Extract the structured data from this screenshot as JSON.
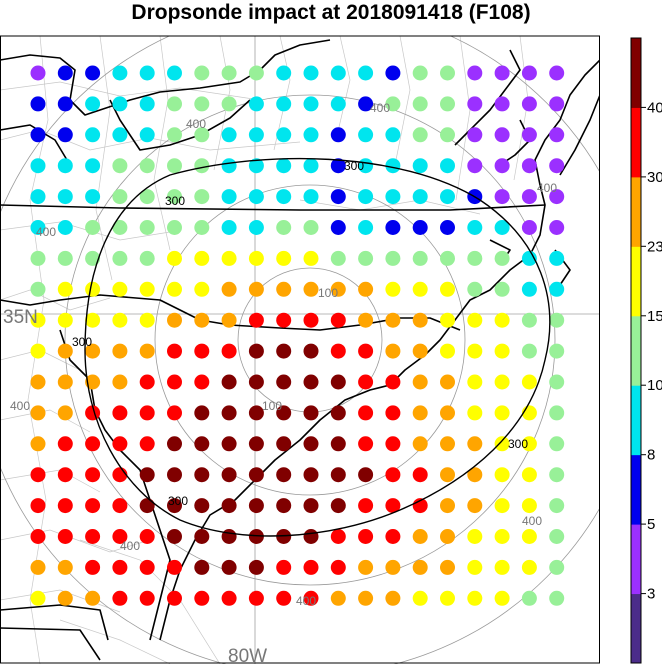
{
  "chart_data": {
    "type": "scatter",
    "title": "Dropsonde impact at 2018091418 (F108)",
    "grid_labels": {
      "latitude": "35N",
      "longitude": "80W"
    },
    "ring_labels": [
      "100",
      "100",
      "300",
      "300",
      "300",
      "300",
      "300",
      "400",
      "400",
      "400",
      "400",
      "400",
      "400",
      "400",
      "400"
    ],
    "colorbar": {
      "tick_labels": [
        "3",
        "5",
        "8",
        "10",
        "15",
        "23",
        "30",
        "40"
      ],
      "colors": [
        "#4b2c8a",
        "#9b30ff",
        "#0000ee",
        "#00e5ee",
        "#98f098",
        "#ffff00",
        "#ffa500",
        "#ff0000",
        "#800000"
      ]
    },
    "grid": {
      "rows": 18,
      "cols": 20,
      "category_codes": "0=3, 1=5, 2=8, 3=10, 4=15, 5=23, 6=30, 7=40, 8=>40",
      "values": [
        [
          1,
          2,
          2,
          3,
          3,
          3,
          4,
          4,
          4,
          3,
          3,
          3,
          3,
          2,
          4,
          4,
          1,
          1,
          1,
          1
        ],
        [
          2,
          2,
          3,
          3,
          3,
          4,
          4,
          4,
          3,
          3,
          3,
          3,
          2,
          4,
          4,
          4,
          1,
          1,
          1,
          1
        ],
        [
          2,
          2,
          3,
          3,
          3,
          4,
          4,
          3,
          3,
          3,
          3,
          2,
          3,
          3,
          4,
          4,
          1,
          1,
          1,
          1
        ],
        [
          3,
          3,
          3,
          4,
          4,
          4,
          4,
          3,
          3,
          3,
          3,
          2,
          3,
          3,
          3,
          3,
          1,
          1,
          1,
          1
        ],
        [
          3,
          3,
          3,
          4,
          4,
          4,
          4,
          3,
          3,
          3,
          3,
          2,
          3,
          3,
          3,
          3,
          2,
          1,
          1,
          1
        ],
        [
          3,
          3,
          4,
          4,
          4,
          4,
          4,
          3,
          3,
          4,
          4,
          2,
          3,
          2,
          2,
          2,
          3,
          3,
          1,
          1
        ],
        [
          4,
          4,
          4,
          4,
          4,
          5,
          5,
          5,
          5,
          5,
          5,
          4,
          4,
          4,
          4,
          4,
          4,
          4,
          3,
          3
        ],
        [
          4,
          5,
          5,
          5,
          5,
          5,
          5,
          6,
          6,
          6,
          6,
          6,
          6,
          5,
          5,
          5,
          4,
          4,
          3,
          3
        ],
        [
          5,
          5,
          5,
          5,
          5,
          6,
          6,
          6,
          7,
          7,
          7,
          7,
          6,
          6,
          6,
          5,
          5,
          5,
          4,
          4
        ],
        [
          5,
          6,
          6,
          6,
          6,
          7,
          7,
          7,
          8,
          8,
          8,
          7,
          7,
          6,
          6,
          5,
          5,
          5,
          4,
          4
        ],
        [
          6,
          6,
          6,
          6,
          7,
          7,
          7,
          8,
          8,
          8,
          8,
          8,
          7,
          7,
          6,
          6,
          5,
          5,
          5,
          4
        ],
        [
          6,
          6,
          7,
          7,
          7,
          7,
          8,
          8,
          8,
          8,
          8,
          8,
          7,
          7,
          6,
          6,
          5,
          5,
          5,
          4
        ],
        [
          6,
          7,
          7,
          7,
          7,
          8,
          8,
          8,
          8,
          8,
          8,
          8,
          7,
          7,
          6,
          6,
          6,
          5,
          5,
          4
        ],
        [
          7,
          7,
          7,
          7,
          8,
          8,
          8,
          8,
          8,
          8,
          8,
          8,
          8,
          7,
          7,
          6,
          6,
          5,
          5,
          4
        ],
        [
          7,
          7,
          7,
          7,
          8,
          8,
          8,
          8,
          8,
          8,
          8,
          8,
          7,
          7,
          7,
          6,
          6,
          5,
          5,
          4
        ],
        [
          7,
          7,
          7,
          7,
          7,
          8,
          8,
          8,
          8,
          8,
          8,
          7,
          7,
          7,
          6,
          6,
          5,
          5,
          5,
          4
        ],
        [
          6,
          6,
          7,
          7,
          7,
          7,
          8,
          8,
          8,
          7,
          7,
          7,
          6,
          6,
          6,
          6,
          5,
          5,
          5,
          4
        ],
        [
          5,
          6,
          6,
          7,
          7,
          7,
          7,
          7,
          7,
          7,
          7,
          6,
          6,
          6,
          5,
          5,
          5,
          5,
          4,
          4
        ]
      ]
    }
  }
}
